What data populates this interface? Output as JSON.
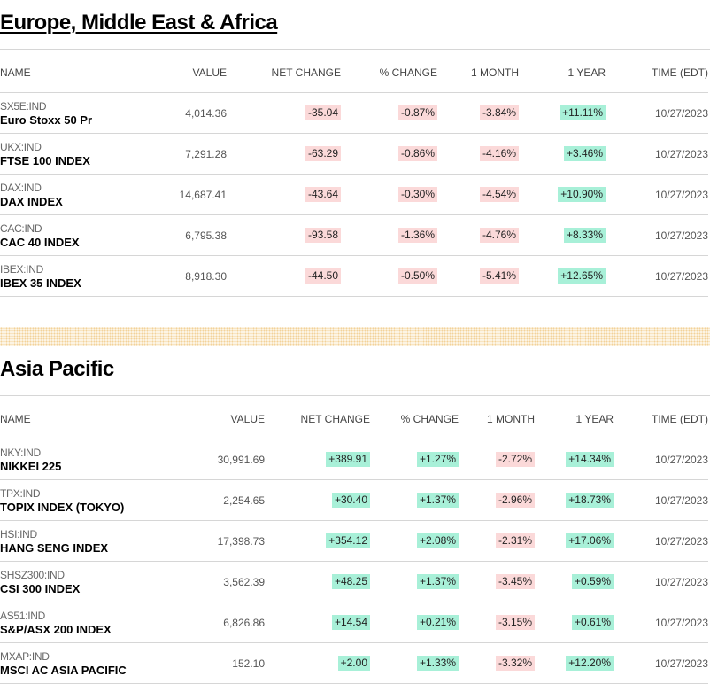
{
  "sections": [
    {
      "title": "Europe, Middle East & Africa",
      "headers": [
        "NAME",
        "VALUE",
        "NET CHANGE",
        "% CHANGE",
        "1 MONTH",
        "1 YEAR",
        "TIME (EDT)"
      ],
      "rows": [
        {
          "symbol": "SX5E:IND",
          "name": "Euro Stoxx 50 Pr",
          "value": "4,014.36",
          "net": "-35.04",
          "pct": "-0.87%",
          "month": "-3.84%",
          "year": "+11.11%",
          "time": "10/27/2023"
        },
        {
          "symbol": "UKX:IND",
          "name": "FTSE 100 INDEX",
          "value": "7,291.28",
          "net": "-63.29",
          "pct": "-0.86%",
          "month": "-4.16%",
          "year": "+3.46%",
          "time": "10/27/2023"
        },
        {
          "symbol": "DAX:IND",
          "name": "DAX INDEX",
          "value": "14,687.41",
          "net": "-43.64",
          "pct": "-0.30%",
          "month": "-4.54%",
          "year": "+10.90%",
          "time": "10/27/2023"
        },
        {
          "symbol": "CAC:IND",
          "name": "CAC 40 INDEX",
          "value": "6,795.38",
          "net": "-93.58",
          "pct": "-1.36%",
          "month": "-4.76%",
          "year": "+8.33%",
          "time": "10/27/2023"
        },
        {
          "symbol": "IBEX:IND",
          "name": "IBEX 35 INDEX",
          "value": "8,918.30",
          "net": "-44.50",
          "pct": "-0.50%",
          "month": "-5.41%",
          "year": "+12.65%",
          "time": "10/27/2023"
        }
      ]
    },
    {
      "title": "Asia Pacific",
      "headers": [
        "NAME",
        "VALUE",
        "NET CHANGE",
        "% CHANGE",
        "1 MONTH",
        "1 YEAR",
        "TIME (EDT)"
      ],
      "rows": [
        {
          "symbol": "NKY:IND",
          "name": "NIKKEI 225",
          "value": "30,991.69",
          "net": "+389.91",
          "pct": "+1.27%",
          "month": "-2.72%",
          "year": "+14.34%",
          "time": "10/27/2023"
        },
        {
          "symbol": "TPX:IND",
          "name": "TOPIX INDEX (TOKYO)",
          "value": "2,254.65",
          "net": "+30.40",
          "pct": "+1.37%",
          "month": "-2.96%",
          "year": "+18.73%",
          "time": "10/27/2023"
        },
        {
          "symbol": "HSI:IND",
          "name": "HANG SENG INDEX",
          "value": "17,398.73",
          "net": "+354.12",
          "pct": "+2.08%",
          "month": "-2.31%",
          "year": "+17.06%",
          "time": "10/27/2023"
        },
        {
          "symbol": "SHSZ300:IND",
          "name": "CSI 300 INDEX",
          "value": "3,562.39",
          "net": "+48.25",
          "pct": "+1.37%",
          "month": "-3.45%",
          "year": "+0.59%",
          "time": "10/27/2023"
        },
        {
          "symbol": "AS51:IND",
          "name": "S&P/ASX 200 INDEX",
          "value": "6,826.86",
          "net": "+14.54",
          "pct": "+0.21%",
          "month": "-3.15%",
          "year": "+0.61%",
          "time": "10/27/2023"
        },
        {
          "symbol": "MXAP:IND",
          "name": "MSCI AC ASIA PACIFIC",
          "value": "152.10",
          "net": "+2.00",
          "pct": "+1.33%",
          "month": "-3.32%",
          "year": "+12.20%",
          "time": "10/27/2023"
        }
      ]
    }
  ],
  "colors": {
    "negative_bg": "#fbd9d9",
    "positive_bg": "#a8f0d8",
    "divider": "#d6d6d6",
    "dot_band": "#f2d29a"
  }
}
